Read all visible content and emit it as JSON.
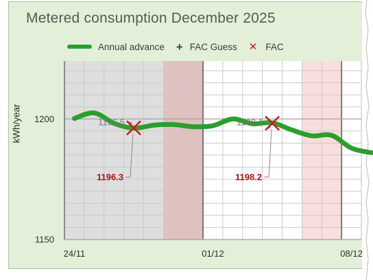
{
  "title": "Metered consumption December 2025",
  "legend": {
    "annual_advance": "Annual advance",
    "fac_guess": "FAC Guess",
    "fac": "FAC"
  },
  "colors": {
    "background": "#e3efd9",
    "series": "#2c9e2c",
    "fac_marker": "#d01818",
    "fac_label": "#b01010",
    "guess_label": "#777777",
    "weekend": "#dedede",
    "holiday": "#e1c0c0",
    "holiday_light": "#f9dede"
  },
  "chart_data": {
    "type": "line",
    "title": "Metered consumption December 2025",
    "ylabel": "kWh/year",
    "xlabel": "",
    "ylim": [
      1150,
      1224
    ],
    "xlim": [
      "2025-11-24",
      "2025-12-09"
    ],
    "x_ticks": [
      {
        "date": "2025-11-24",
        "label": "24/11"
      },
      {
        "date": "2025-12-01",
        "label": "01/12"
      },
      {
        "date": "2025-12-08",
        "label": "08/12"
      }
    ],
    "y_ticks": [
      {
        "value": 1200,
        "label": "1200"
      },
      {
        "value": 1150,
        "label": "1150"
      }
    ],
    "grid": true,
    "shaded_days": [
      {
        "date": "2025-11-24",
        "kind": "weekend"
      },
      {
        "date": "2025-11-25",
        "kind": "weekend"
      },
      {
        "date": "2025-11-26",
        "kind": "weekend"
      },
      {
        "date": "2025-11-27",
        "kind": "weekend"
      },
      {
        "date": "2025-11-28",
        "kind": "weekend"
      },
      {
        "date": "2025-11-29",
        "kind": "holiday"
      },
      {
        "date": "2025-11-30",
        "kind": "holiday"
      },
      {
        "date": "2025-12-06",
        "kind": "holiday_light"
      },
      {
        "date": "2025-12-07",
        "kind": "holiday_light"
      }
    ],
    "series": [
      {
        "name": "Annual advance",
        "x": [
          "2025-11-24",
          "2025-11-25",
          "2025-11-26",
          "2025-11-27",
          "2025-11-28",
          "2025-11-29",
          "2025-11-30",
          "2025-12-01",
          "2025-12-02",
          "2025-12-03",
          "2025-12-04",
          "2025-12-05",
          "2025-12-06",
          "2025-12-07",
          "2025-12-08",
          "2025-12-09"
        ],
        "values": [
          1200.2,
          1202.5,
          1198.2,
          1196.2,
          1197.4,
          1197.7,
          1196.8,
          1197.2,
          1200.0,
          1198.0,
          1198.4,
          1195.4,
          1193.0,
          1193.2,
          1187.9,
          1186.0
        ]
      }
    ],
    "fac_points": [
      {
        "date": "2025-11-27",
        "fac": 1196.3,
        "fac_label": "1196.3",
        "guess": 1196.5,
        "guess_label": "1196.5"
      },
      {
        "date": "2025-12-04",
        "fac": 1198.2,
        "fac_label": "1198.2",
        "guess": 1198.1,
        "guess_label": "1198.1"
      }
    ]
  }
}
